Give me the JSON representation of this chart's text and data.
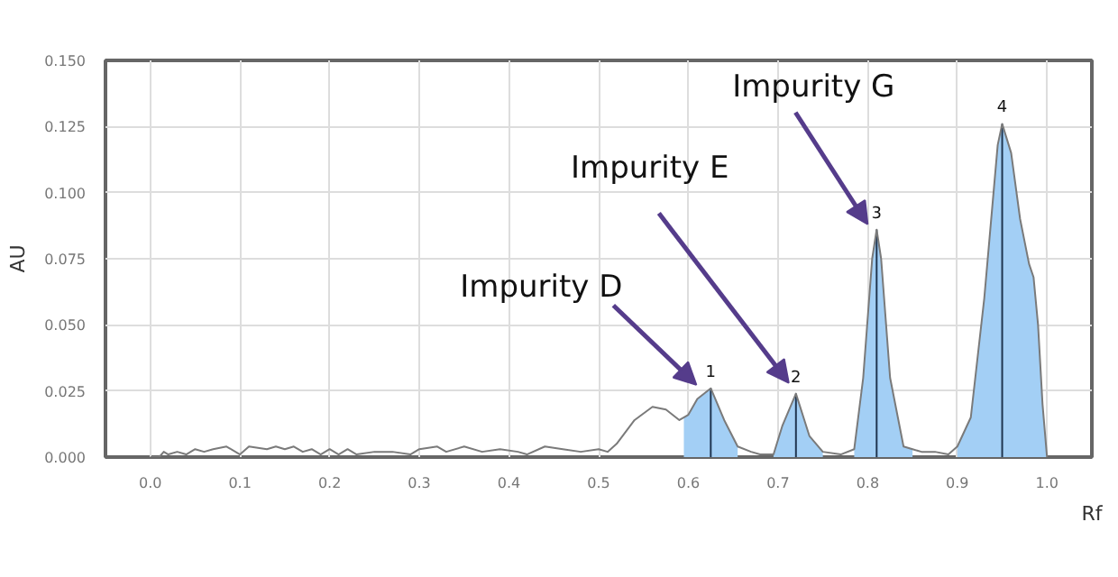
{
  "chart_data": {
    "type": "line",
    "xlabel": "Rf",
    "ylabel": "AU",
    "xlim": [
      -0.05,
      1.05
    ],
    "ylim": [
      0,
      0.15
    ],
    "xticks": [
      {
        "value": 0,
        "label": "0.0"
      },
      {
        "value": 0.1,
        "label": "0.1"
      },
      {
        "value": 0.2,
        "label": "0.2"
      },
      {
        "value": 0.3,
        "label": "0.3"
      },
      {
        "value": 0.4,
        "label": "0.4"
      },
      {
        "value": 0.5,
        "label": "0.5"
      },
      {
        "value": 0.6,
        "label": "0.6"
      },
      {
        "value": 0.7,
        "label": "0.7"
      },
      {
        "value": 0.8,
        "label": "0.8"
      },
      {
        "value": 0.9,
        "label": "0.9"
      },
      {
        "value": 1,
        "label": "1.0"
      }
    ],
    "yticks": [
      {
        "value": 0,
        "label": "0.000"
      },
      {
        "value": 0.025,
        "label": "0.025"
      },
      {
        "value": 0.05,
        "label": "0.050"
      },
      {
        "value": 0.075,
        "label": "0.075"
      },
      {
        "value": 0.1,
        "label": "0.100"
      },
      {
        "value": 0.125,
        "label": "0.125"
      },
      {
        "value": 0.15,
        "label": "0.150"
      }
    ],
    "grid": true,
    "series": [
      {
        "type": "area",
        "color": "#a3cff5",
        "x": [
          0.595,
          0.6,
          0.61,
          0.625,
          0.64,
          0.655
        ],
        "values": [
          0.015,
          0.016,
          0.022,
          0.026,
          0.014,
          0.004
        ]
      },
      {
        "type": "area",
        "color": "#a3cff5",
        "x": [
          0.695,
          0.705,
          0.72,
          0.735,
          0.75
        ],
        "values": [
          0.001,
          0.012,
          0.024,
          0.008,
          0.002
        ]
      },
      {
        "type": "area",
        "color": "#a3cff5",
        "x": [
          0.785,
          0.795,
          0.805,
          0.81,
          0.815,
          0.825,
          0.84,
          0.85
        ],
        "values": [
          0.003,
          0.03,
          0.075,
          0.086,
          0.075,
          0.03,
          0.004,
          0.003
        ]
      },
      {
        "type": "area",
        "color": "#a3cff5",
        "x": [
          0.9,
          0.915,
          0.93,
          0.945,
          0.95,
          0.96,
          0.97,
          0.98,
          0.985,
          0.99,
          0.995,
          1.0
        ],
        "values": [
          0.004,
          0.015,
          0.06,
          0.118,
          0.126,
          0.115,
          0.09,
          0.073,
          0.068,
          0.05,
          0.02,
          0.0
        ]
      },
      {
        "type": "bar",
        "color": "#1f3550",
        "x": [
          0.625,
          0.72,
          0.81,
          0.95
        ],
        "values": [
          0.026,
          0.024,
          0.086,
          0.126
        ]
      },
      {
        "color": "#7a7a7a",
        "x": [
          0.0,
          0.01,
          0.015,
          0.02,
          0.03,
          0.04,
          0.05,
          0.06,
          0.07,
          0.085,
          0.1,
          0.11,
          0.13,
          0.14,
          0.15,
          0.16,
          0.17,
          0.18,
          0.19,
          0.2,
          0.21,
          0.22,
          0.23,
          0.25,
          0.27,
          0.29,
          0.3,
          0.32,
          0.33,
          0.35,
          0.37,
          0.39,
          0.41,
          0.42,
          0.44,
          0.46,
          0.48,
          0.5,
          0.51,
          0.52,
          0.54,
          0.56,
          0.575,
          0.59,
          0.6,
          0.61,
          0.625,
          0.64,
          0.655,
          0.67,
          0.68,
          0.695,
          0.705,
          0.72,
          0.735,
          0.75,
          0.77,
          0.785,
          0.795,
          0.805,
          0.81,
          0.815,
          0.825,
          0.84,
          0.85,
          0.86,
          0.875,
          0.89,
          0.9,
          0.915,
          0.93,
          0.945,
          0.95,
          0.96,
          0.97,
          0.98,
          0.985,
          0.99,
          0.995,
          1.0
        ],
        "values": [
          0,
          0,
          0.002,
          0.001,
          0.002,
          0.001,
          0.003,
          0.002,
          0.003,
          0.004,
          0.001,
          0.004,
          0.003,
          0.004,
          0.003,
          0.004,
          0.002,
          0.003,
          0.001,
          0.003,
          0.001,
          0.003,
          0.001,
          0.002,
          0.002,
          0.001,
          0.003,
          0.004,
          0.002,
          0.004,
          0.002,
          0.003,
          0.002,
          0.001,
          0.004,
          0.003,
          0.002,
          0.003,
          0.002,
          0.005,
          0.014,
          0.019,
          0.018,
          0.014,
          0.016,
          0.022,
          0.026,
          0.014,
          0.004,
          0.002,
          0.001,
          0.001,
          0.012,
          0.024,
          0.008,
          0.002,
          0.001,
          0.003,
          0.03,
          0.075,
          0.086,
          0.075,
          0.03,
          0.004,
          0.003,
          0.002,
          0.002,
          0.001,
          0.004,
          0.015,
          0.06,
          0.118,
          0.126,
          0.115,
          0.09,
          0.073,
          0.068,
          0.05,
          0.02,
          0
        ]
      }
    ],
    "annotations": [
      {
        "text": "1",
        "x": 0.625,
        "y": 0.026
      },
      {
        "text": "2",
        "x": 0.72,
        "y": 0.024
      },
      {
        "text": "3",
        "x": 0.81,
        "y": 0.086
      },
      {
        "text": "4",
        "x": 0.95,
        "y": 0.126
      },
      {
        "text": "Impurity D",
        "x": 0.625,
        "y": 0.026
      },
      {
        "text": "Impurity E",
        "x": 0.72,
        "y": 0.024
      },
      {
        "text": "Impurity G",
        "x": 0.81,
        "y": 0.086
      }
    ]
  }
}
